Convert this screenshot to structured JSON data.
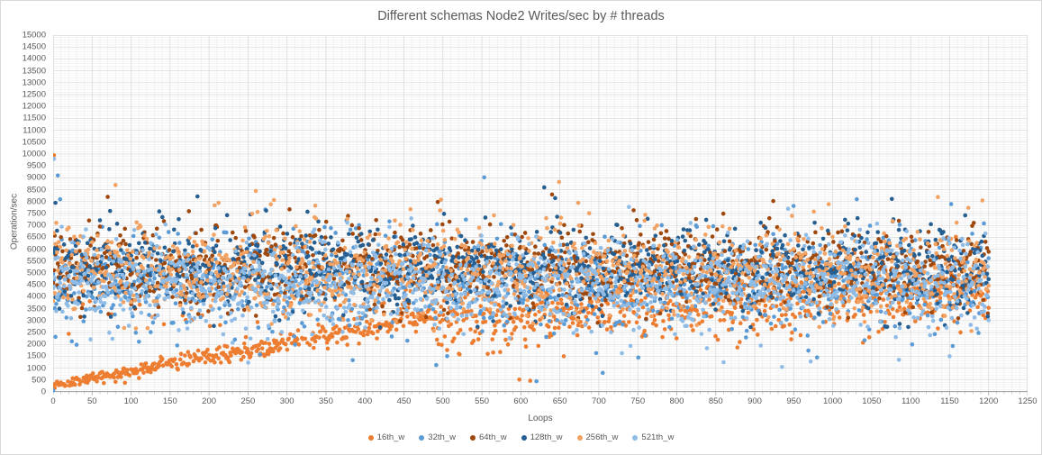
{
  "window": {
    "background": "#FFFFFF",
    "border_color": "#D9D9D9"
  },
  "chart_data": {
    "type": "scatter",
    "title": "Different schemas Node2 Writes/sec by # threads",
    "xlabel": "Loops",
    "ylabel": "Operation/sec",
    "xlim": [
      0,
      1250
    ],
    "ylim": [
      0,
      15000
    ],
    "x_tick_step": 50,
    "y_tick_step": 500,
    "x_minor_step": 10,
    "y_minor_step": 100,
    "grid": true,
    "legend_position": "bottom",
    "points_per_series_x_range": [
      0,
      1200
    ],
    "seed": 1337,
    "marker_radius": 2.3,
    "tail_frac": 0.09,
    "tail_mult": 1.9,
    "colors": {
      "text": "#595959",
      "grid_major": "#D9D9D9",
      "grid_minor": "#ECECEC",
      "axis_line": "#A6A6A6",
      "tick_mark": "#BFBFBF"
    },
    "series": [
      {
        "name": "16th_w",
        "color": "#ED7D31",
        "count": 1200,
        "profile": {
          "type": "ramp-band",
          "ramp_end_x": 480,
          "ramp_y0": 280,
          "ramp_slope": 6.0,
          "ramp_std": 300,
          "upper_frac": 0.18,
          "upper_mean": 4100,
          "upper_std": 1050,
          "upper_clip": [
            2400,
            7200
          ],
          "band_mean_at_ramp_end": 3000,
          "band_slope": 1.7,
          "band_std": 620,
          "clip": [
            1500,
            7200
          ]
        },
        "outliers": [
          [
            1,
            9950
          ],
          [
            598,
            520
          ],
          [
            612,
            470
          ],
          [
            655,
            1500
          ]
        ]
      },
      {
        "name": "32th_w",
        "color": "#5B9BD5",
        "count": 1200,
        "profile": {
          "type": "band",
          "mean_start": 4750,
          "mean_end": 4550,
          "std": 920,
          "clip": [
            500,
            8200
          ]
        },
        "outliers": [
          [
            6,
            9100
          ],
          [
            9,
            8100
          ],
          [
            553,
            9020
          ],
          [
            620,
            450
          ],
          [
            705,
            800
          ],
          [
            980,
            1450
          ],
          [
            0,
            60
          ]
        ]
      },
      {
        "name": "64th_w",
        "color": "#9E480E",
        "count": 1200,
        "profile": {
          "type": "band",
          "mean_start": 5350,
          "mean_end": 5150,
          "std": 770,
          "clip": [
            2900,
            8400
          ]
        },
        "outliers": [
          [
            70,
            8200
          ],
          [
            640,
            8300
          ]
        ]
      },
      {
        "name": "128th_w",
        "color": "#255E91",
        "count": 1200,
        "profile": {
          "type": "band",
          "mean_start": 5250,
          "mean_end": 5100,
          "std": 850,
          "clip": [
            2700,
            8700
          ]
        },
        "outliers": [
          [
            3,
            7950
          ],
          [
            630,
            8600
          ],
          [
            644,
            8150
          ]
        ]
      },
      {
        "name": "256th_w",
        "color": "#F2A364",
        "count": 1200,
        "profile": {
          "type": "band",
          "mean_start": 5150,
          "mean_end": 4950,
          "std": 940,
          "clip": [
            2500,
            8300
          ]
        },
        "outliers": [
          [
            80,
            8700
          ],
          [
            260,
            8450
          ],
          [
            649,
            8830
          ]
        ]
      },
      {
        "name": "521th_w",
        "color": "#8FBCE6",
        "count": 1200,
        "profile": {
          "type": "band",
          "mean_start": 4650,
          "mean_end": 4500,
          "std": 930,
          "clip": [
            700,
            7800
          ]
        },
        "outliers": [
          [
            1,
            9800
          ],
          [
            860,
            1250
          ],
          [
            935,
            1050
          ],
          [
            1085,
            1350
          ],
          [
            1150,
            1500
          ]
        ]
      }
    ]
  }
}
